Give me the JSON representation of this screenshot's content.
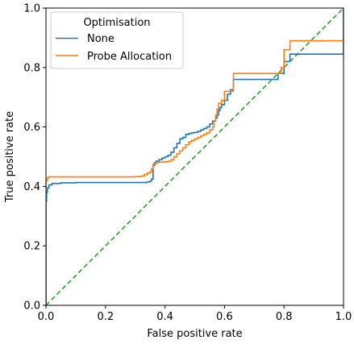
{
  "chart_data": {
    "type": "line",
    "title": "",
    "xlabel": "False positive rate",
    "ylabel": "True positive rate",
    "xlim": [
      0.0,
      1.0
    ],
    "ylim": [
      0.0,
      1.0
    ],
    "xticks": [
      0.0,
      0.2,
      0.4,
      0.6,
      0.8,
      1.0
    ],
    "yticks": [
      0.0,
      0.2,
      0.4,
      0.6,
      0.8,
      1.0
    ],
    "xtick_labels": [
      "0.0",
      "0.2",
      "0.4",
      "0.6",
      "0.8",
      "1.0"
    ],
    "ytick_labels": [
      "0.0",
      "0.2",
      "0.4",
      "0.6",
      "0.8",
      "1.0"
    ],
    "grid": false,
    "legend": {
      "title": "Optimisation",
      "placement": "upper-left"
    },
    "series": [
      {
        "name": "None",
        "color": "#1f77b4",
        "style": "step",
        "x": [
          0.0,
          0.0,
          0.002,
          0.005,
          0.01,
          0.02,
          0.05,
          0.1,
          0.2,
          0.3,
          0.34,
          0.35,
          0.355,
          0.36,
          0.365,
          0.37,
          0.38,
          0.39,
          0.4,
          0.41,
          0.42,
          0.43,
          0.44,
          0.45,
          0.46,
          0.47,
          0.48,
          0.49,
          0.5,
          0.51,
          0.52,
          0.53,
          0.54,
          0.55,
          0.56,
          0.57,
          0.575,
          0.58,
          0.585,
          0.59,
          0.6,
          0.61,
          0.62,
          0.63,
          0.76,
          0.78,
          0.8,
          0.82,
          0.9,
          1.0,
          1.0
        ],
        "y": [
          0.0,
          0.35,
          0.38,
          0.395,
          0.405,
          0.41,
          0.412,
          0.413,
          0.413,
          0.413,
          0.415,
          0.418,
          0.425,
          0.47,
          0.48,
          0.485,
          0.49,
          0.495,
          0.5,
          0.505,
          0.515,
          0.53,
          0.545,
          0.56,
          0.565,
          0.575,
          0.578,
          0.58,
          0.582,
          0.585,
          0.59,
          0.595,
          0.6,
          0.61,
          0.62,
          0.63,
          0.64,
          0.655,
          0.665,
          0.675,
          0.69,
          0.71,
          0.725,
          0.76,
          0.76,
          0.78,
          0.82,
          0.845,
          0.845,
          0.845,
          1.0
        ]
      },
      {
        "name": "Probe Allocation",
        "color": "#ff7f0e",
        "style": "step",
        "x": [
          0.0,
          0.0,
          0.005,
          0.01,
          0.05,
          0.1,
          0.2,
          0.27,
          0.3,
          0.32,
          0.33,
          0.34,
          0.35,
          0.355,
          0.36,
          0.37,
          0.38,
          0.4,
          0.41,
          0.42,
          0.43,
          0.44,
          0.45,
          0.46,
          0.47,
          0.48,
          0.49,
          0.5,
          0.51,
          0.52,
          0.53,
          0.54,
          0.55,
          0.56,
          0.565,
          0.57,
          0.575,
          0.58,
          0.59,
          0.6,
          0.63,
          0.78,
          0.79,
          0.8,
          0.82,
          0.9,
          1.0,
          1.0
        ],
        "y": [
          0.0,
          0.42,
          0.43,
          0.432,
          0.432,
          0.432,
          0.432,
          0.432,
          0.433,
          0.435,
          0.44,
          0.445,
          0.45,
          0.46,
          0.475,
          0.48,
          0.482,
          0.483,
          0.485,
          0.49,
          0.5,
          0.51,
          0.52,
          0.53,
          0.54,
          0.55,
          0.555,
          0.56,
          0.565,
          0.57,
          0.575,
          0.58,
          0.59,
          0.6,
          0.62,
          0.64,
          0.66,
          0.68,
          0.69,
          0.72,
          0.78,
          0.78,
          0.8,
          0.86,
          0.89,
          0.89,
          0.89,
          1.0
        ]
      },
      {
        "name": "",
        "color": "#2ca02c",
        "style": "dashed",
        "x": [
          0.0,
          1.0
        ],
        "y": [
          0.0,
          1.0
        ]
      }
    ]
  }
}
